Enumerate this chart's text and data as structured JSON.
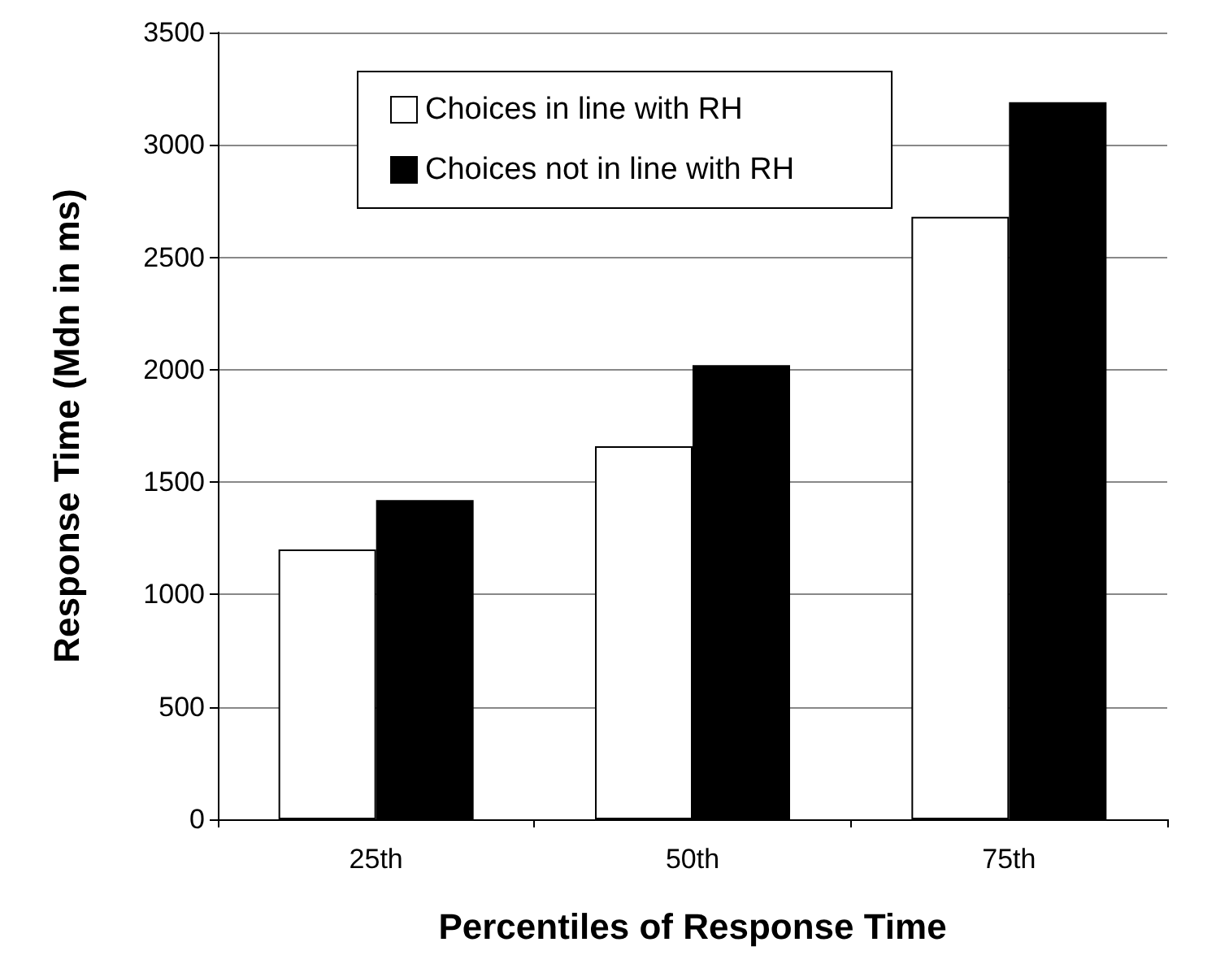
{
  "chart_data": {
    "type": "bar",
    "xlabel": "Percentiles of Response Time",
    "ylabel": "Response Time (Mdn in ms)",
    "categories": [
      "25th",
      "50th",
      "75th"
    ],
    "series": [
      {
        "name": "Choices in line with RH",
        "color": "#ffffff",
        "values": [
          1200,
          1660,
          2680
        ]
      },
      {
        "name": "Choices not in line with RH",
        "color": "#000000",
        "values": [
          1420,
          2020,
          3190
        ]
      }
    ],
    "ylim": [
      0,
      3500
    ],
    "yticks": [
      0,
      500,
      1000,
      1500,
      2000,
      2500,
      3000,
      3500
    ],
    "grid": "y",
    "legend": "top left"
  }
}
